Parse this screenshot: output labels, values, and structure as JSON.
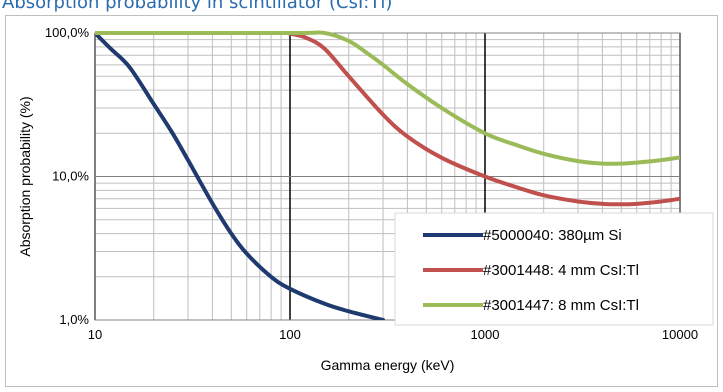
{
  "page_title": "Absorption probability in scintillator (CsI:Tl)",
  "chart_data": {
    "type": "line",
    "title": "",
    "xlabel": "Gamma energy (keV)",
    "ylabel": "Absorption probability (%)",
    "x_scale": "log",
    "y_scale": "log",
    "xlim": [
      10,
      10000
    ],
    "ylim": [
      1,
      100
    ],
    "x_ticks": [
      "10",
      "100",
      "1000",
      "10000"
    ],
    "y_ticks": [
      "1,0%",
      "10,0%",
      "100,0%"
    ],
    "grid": true,
    "legend_position": "bottom-right",
    "series": [
      {
        "name": "#5000040: 380µm Si",
        "color": "#1f3a70",
        "x": [
          10,
          12,
          15,
          20,
          25,
          30,
          40,
          50,
          60,
          80,
          100,
          150,
          200,
          300
        ],
        "y": [
          100,
          78,
          58,
          32,
          20,
          13,
          6.5,
          4.0,
          2.9,
          2.0,
          1.65,
          1.3,
          1.15,
          1.0
        ]
      },
      {
        "name": "#3001448: 4 mm CsI:Tl",
        "color": "#c0504d",
        "x": [
          10,
          50,
          90,
          100,
          120,
          150,
          200,
          300,
          400,
          600,
          1000,
          1500,
          2000,
          3000,
          4000,
          5000,
          6000,
          8000,
          10000
        ],
        "y": [
          100,
          100,
          100,
          99,
          93,
          78,
          50,
          27,
          19,
          13.5,
          10,
          8.3,
          7.4,
          6.7,
          6.45,
          6.4,
          6.45,
          6.7,
          7.0
        ]
      },
      {
        "name": "#3001447: 8 mm CsI:Tl",
        "color": "#9bbb59",
        "x": [
          10,
          100,
          150,
          200,
          250,
          300,
          400,
          600,
          1000,
          1500,
          2000,
          3000,
          4000,
          5000,
          6000,
          8000,
          10000
        ],
        "y": [
          100,
          100,
          100,
          88,
          72,
          60,
          44,
          30,
          20,
          16.3,
          14.4,
          12.8,
          12.3,
          12.3,
          12.5,
          13.0,
          13.6
        ]
      }
    ]
  }
}
